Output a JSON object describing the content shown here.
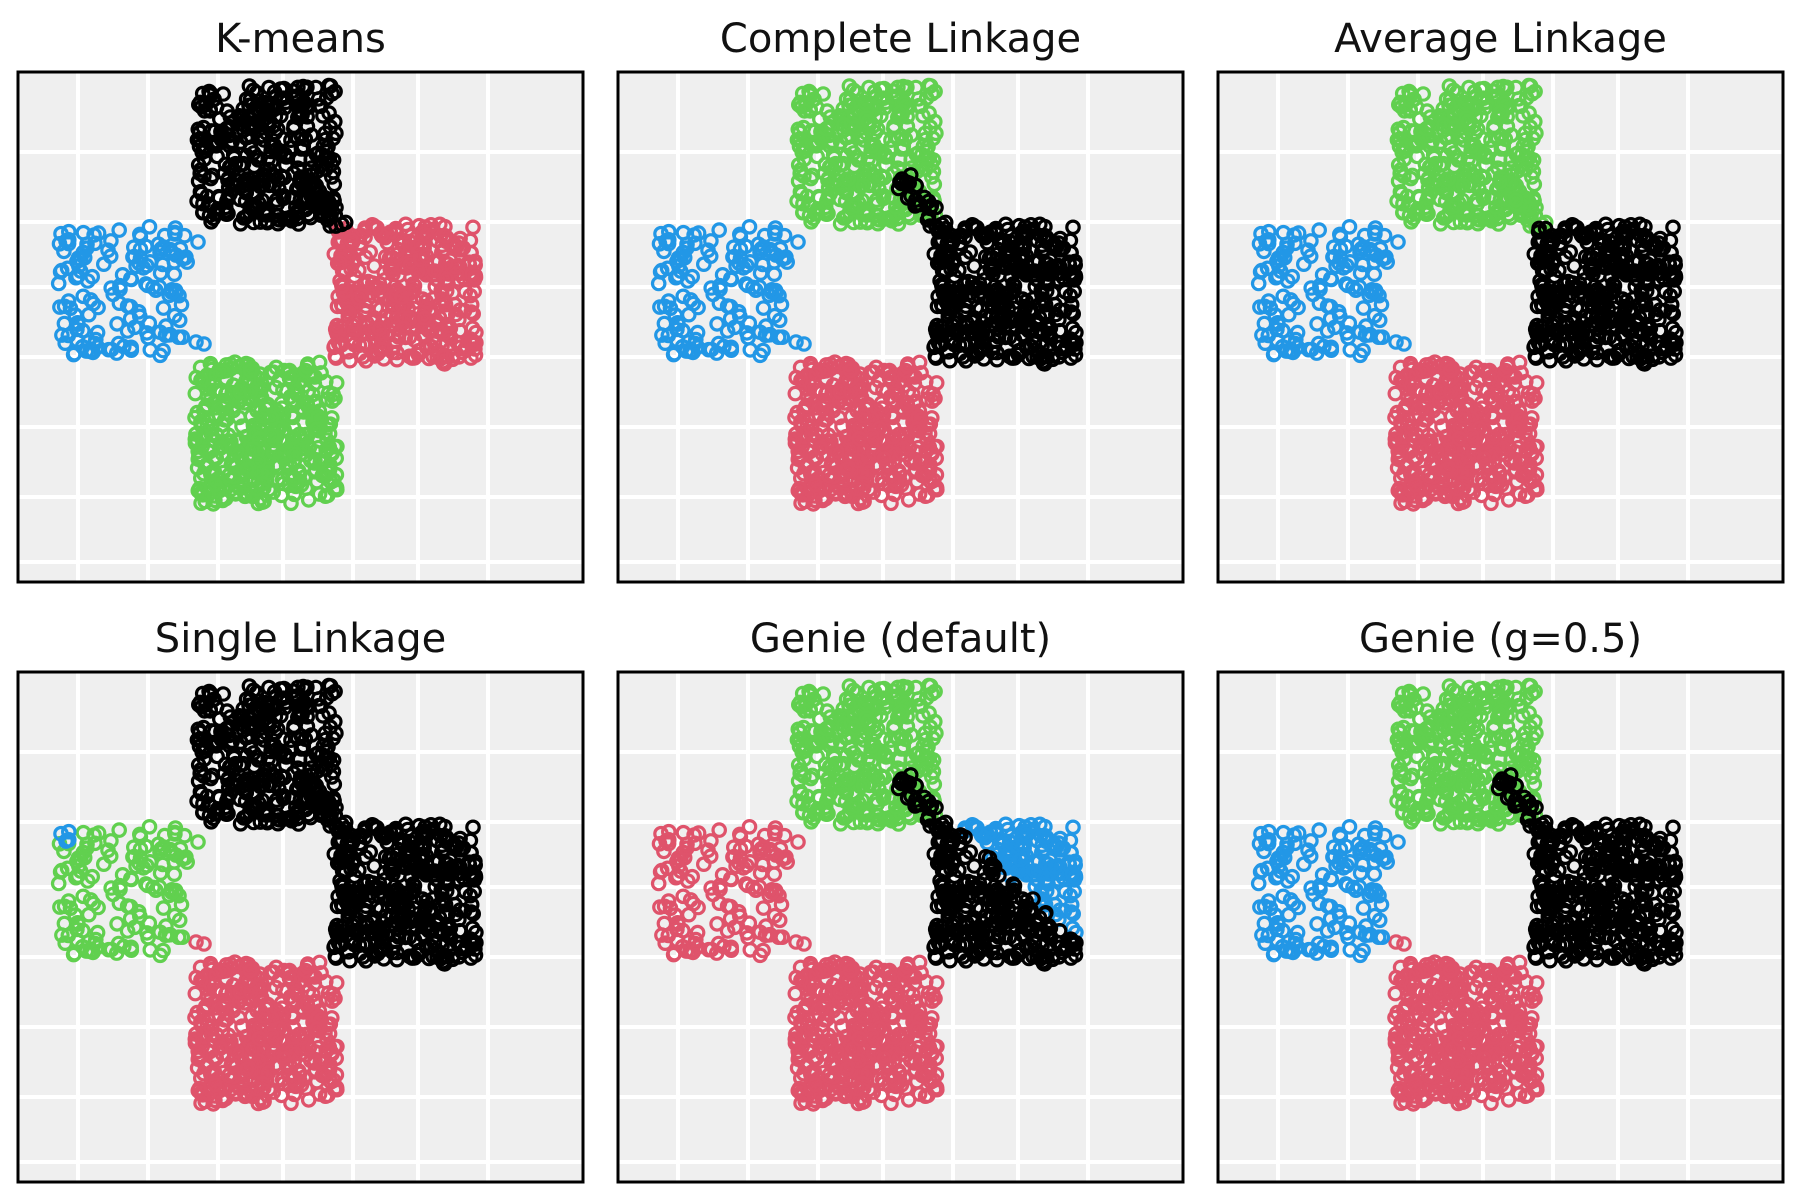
{
  "figure": {
    "palette": {
      "black": "#000000",
      "red": "#df536b",
      "green": "#61d04f",
      "blue": "#2297e6"
    },
    "panel_background": "#efefef",
    "grid_color": "#ffffff"
  },
  "chart_data": [
    {
      "type": "scatter",
      "title": "K-means",
      "xlim": [
        0,
        7.2
      ],
      "ylim": [
        0,
        6.4
      ],
      "grid": true,
      "clusters": [
        {
          "color": "black",
          "region": "top-square",
          "x": [
            2.5,
            4.5
          ],
          "y": [
            4.2,
            6.2
          ]
        },
        {
          "color": "blue",
          "region": "left-blob",
          "x": [
            0.5,
            2.3
          ],
          "y": [
            2.1,
            4.1
          ]
        },
        {
          "color": "red",
          "region": "right-square",
          "x": [
            4.4,
            6.4
          ],
          "y": [
            2.1,
            4.1
          ]
        },
        {
          "color": "green",
          "region": "bottom-square",
          "x": [
            2.5,
            4.5
          ],
          "y": [
            0.0,
            2.0
          ]
        }
      ]
    },
    {
      "type": "scatter",
      "title": "Complete Linkage",
      "xlim": [
        0,
        7.2
      ],
      "ylim": [
        0,
        6.4
      ],
      "grid": true,
      "clusters": [
        {
          "color": "green",
          "region": "top-square (minus bridge)",
          "x": [
            2.5,
            4.5
          ],
          "y": [
            4.2,
            6.2
          ]
        },
        {
          "color": "blue",
          "region": "left-blob",
          "x": [
            0.5,
            2.3
          ],
          "y": [
            2.1,
            4.1
          ]
        },
        {
          "color": "black",
          "region": "right-square + bridge",
          "x": [
            4.4,
            6.4
          ],
          "y": [
            2.1,
            4.1
          ]
        },
        {
          "color": "red",
          "region": "bottom-square",
          "x": [
            2.5,
            4.5
          ],
          "y": [
            0.0,
            2.0
          ]
        }
      ]
    },
    {
      "type": "scatter",
      "title": "Average Linkage",
      "xlim": [
        0,
        7.2
      ],
      "ylim": [
        0,
        6.4
      ],
      "grid": true,
      "clusters": [
        {
          "color": "green",
          "region": "top-square",
          "x": [
            2.5,
            4.5
          ],
          "y": [
            4.2,
            6.2
          ]
        },
        {
          "color": "blue",
          "region": "left-blob",
          "x": [
            0.5,
            2.3
          ],
          "y": [
            2.1,
            4.1
          ]
        },
        {
          "color": "black",
          "region": "right-square",
          "x": [
            4.4,
            6.4
          ],
          "y": [
            2.1,
            4.1
          ]
        },
        {
          "color": "red",
          "region": "bottom-square",
          "x": [
            2.5,
            4.5
          ],
          "y": [
            0.0,
            2.0
          ]
        }
      ]
    },
    {
      "type": "scatter",
      "title": "Single Linkage",
      "xlim": [
        0,
        7.2
      ],
      "ylim": [
        0,
        6.4
      ],
      "grid": true,
      "clusters": [
        {
          "color": "black",
          "region": "top-square + right-square",
          "x": [
            2.5,
            6.4
          ],
          "y": [
            2.1,
            6.2
          ]
        },
        {
          "color": "green",
          "region": "left-blob",
          "x": [
            0.5,
            2.3
          ],
          "y": [
            2.1,
            4.1
          ]
        },
        {
          "color": "blue",
          "region": "single outlier",
          "x": [
            0.6,
            0.6
          ],
          "y": [
            3.9,
            3.9
          ]
        },
        {
          "color": "red",
          "region": "bottom-square",
          "x": [
            2.5,
            4.5
          ],
          "y": [
            0.0,
            2.0
          ]
        }
      ]
    },
    {
      "type": "scatter",
      "title": "Genie (default)",
      "xlim": [
        0,
        7.2
      ],
      "ylim": [
        0,
        6.4
      ],
      "grid": true,
      "clusters": [
        {
          "color": "green",
          "region": "top-square (minus bridge)",
          "x": [
            2.5,
            4.5
          ],
          "y": [
            4.2,
            6.2
          ]
        },
        {
          "color": "red",
          "region": "left-blob + bottom-square",
          "x": [
            0.5,
            4.5
          ],
          "y": [
            0.0,
            4.1
          ]
        },
        {
          "color": "black",
          "region": "right-square lower-left + bridge",
          "x": [
            4.4,
            6.4
          ],
          "y": [
            2.1,
            4.1
          ]
        },
        {
          "color": "blue",
          "region": "right-square upper-right",
          "x": [
            5.2,
            6.4
          ],
          "y": [
            2.9,
            4.1
          ]
        }
      ]
    },
    {
      "type": "scatter",
      "title": "Genie (g=0.5)",
      "xlim": [
        0,
        7.2
      ],
      "ylim": [
        0,
        6.4
      ],
      "grid": true,
      "clusters": [
        {
          "color": "green",
          "region": "top-square (minus bridge)",
          "x": [
            2.5,
            4.5
          ],
          "y": [
            4.2,
            6.2
          ]
        },
        {
          "color": "blue",
          "region": "left-blob",
          "x": [
            0.5,
            2.3
          ],
          "y": [
            2.1,
            4.1
          ]
        },
        {
          "color": "black",
          "region": "right-square + bridge",
          "x": [
            4.4,
            6.4
          ],
          "y": [
            2.1,
            4.1
          ]
        },
        {
          "color": "red",
          "region": "bottom-square",
          "x": [
            2.5,
            4.5
          ],
          "y": [
            0.0,
            2.0
          ]
        }
      ]
    }
  ]
}
